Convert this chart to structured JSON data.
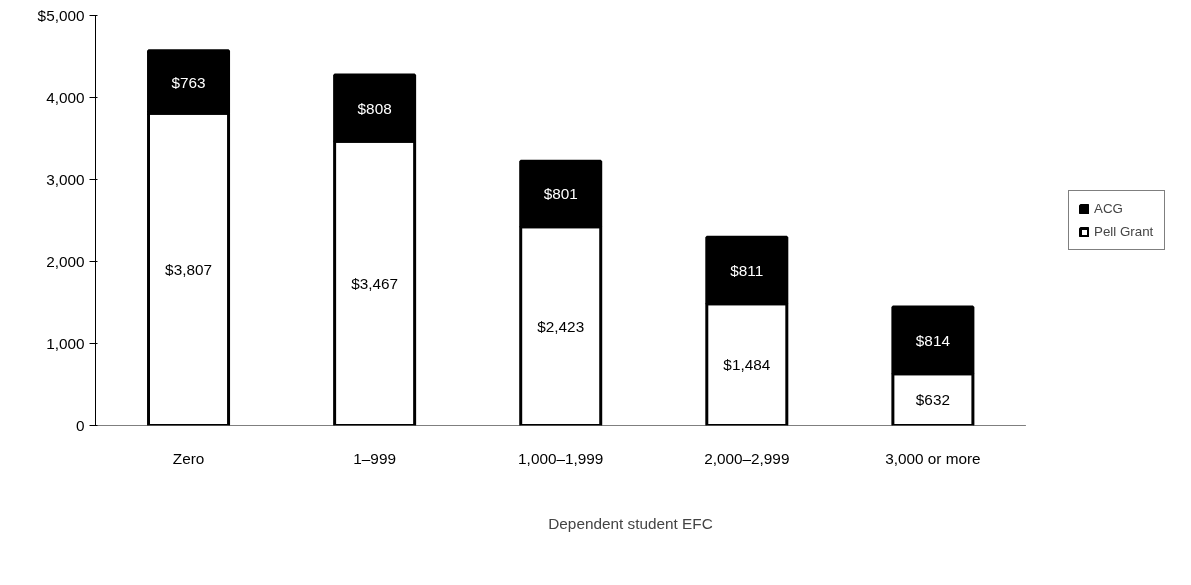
{
  "chart_data": {
    "type": "bar",
    "stacked": true,
    "xlabel": "Dependent student EFC",
    "categories": [
      "Zero",
      "1–999",
      "1,000–1,999",
      "2,000–2,999",
      "3,000 or more"
    ],
    "series": [
      {
        "name": "Pell Grant",
        "color": "#ffffff",
        "values": [
          3807,
          3467,
          2423,
          1484,
          632
        ],
        "value_labels": [
          "$3,807",
          "$3,467",
          "$2,423",
          "$1,484",
          "$632"
        ]
      },
      {
        "name": "ACG",
        "color": "#000000",
        "values": [
          763,
          808,
          801,
          811,
          814
        ],
        "value_labels": [
          "$763",
          "$808",
          "$801",
          "$811",
          "$814"
        ]
      }
    ],
    "ylim": [
      0,
      5000
    ],
    "yticks": [
      0,
      {
        "value": 1000,
        "label": "1,000"
      },
      {
        "value": 2000,
        "label": "2,000"
      },
      {
        "value": 3000,
        "label": "3,000"
      },
      {
        "value": 4000,
        "label": "4,000"
      },
      {
        "value": 5000,
        "label": "$5,000"
      }
    ],
    "grid": false,
    "legend": "right"
  }
}
